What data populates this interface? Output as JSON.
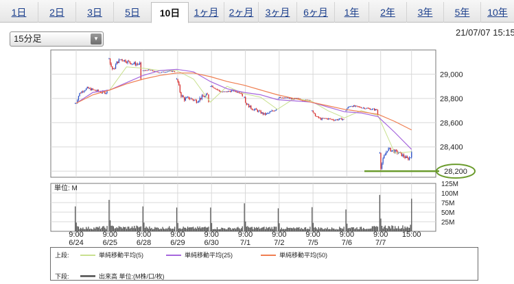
{
  "tabs": [
    {
      "label": "1日",
      "active": false
    },
    {
      "label": "2日",
      "active": false
    },
    {
      "label": "3日",
      "active": false
    },
    {
      "label": "5日",
      "active": false
    },
    {
      "label": "10日",
      "active": true
    },
    {
      "label": "1ヶ月",
      "active": false
    },
    {
      "label": "2ヶ月",
      "active": false
    },
    {
      "label": "3ヶ月",
      "active": false
    },
    {
      "label": "6ヶ月",
      "active": false
    },
    {
      "label": "1年",
      "active": false
    },
    {
      "label": "2年",
      "active": false
    },
    {
      "label": "3年",
      "active": false
    },
    {
      "label": "5年",
      "active": false
    },
    {
      "label": "10年",
      "active": false
    }
  ],
  "interval_select": {
    "value": "15分足"
  },
  "timestamp": "21/07/07 15:15",
  "legend": {
    "upper_label": "上段:",
    "lower_label": "下段:",
    "items": [
      {
        "label": "単純移動平均(5)",
        "color": "#c8e08e"
      },
      {
        "label": "単純移動平均(25)",
        "color": "#a565dd"
      },
      {
        "label": "単純移動平均(50)",
        "color": "#ef7d4f"
      }
    ],
    "volume_label": "出来高 単位:(M株/口/枚)",
    "volume_color": "#666666"
  },
  "chart_data": {
    "type": "candlestick",
    "price_axis": {
      "ylim": [
        28150,
        29200
      ],
      "ticks": [
        "29,000",
        "28,800",
        "28,600",
        "28,400"
      ]
    },
    "highlighted_level": {
      "value": 28200,
      "label": "28,200",
      "line_color": "#6a9b2c"
    },
    "x_ticks": [
      {
        "time": "9:00",
        "date": "6/24"
      },
      {
        "time": "9:00",
        "date": "6/25"
      },
      {
        "time": "9:00",
        "date": "6/28"
      },
      {
        "time": "9:00",
        "date": "6/29"
      },
      {
        "time": "9:00",
        "date": "6/30"
      },
      {
        "time": "9:00",
        "date": "7/1"
      },
      {
        "time": "9:00",
        "date": "7/2"
      },
      {
        "time": "9:00",
        "date": "7/5"
      },
      {
        "time": "9:00",
        "date": "7/6"
      },
      {
        "time": "9:00",
        "date": "7/7"
      },
      {
        "time": "15:00",
        "date": ""
      }
    ],
    "days": [
      {
        "date": "6/24",
        "open": 28760,
        "close": 28870,
        "high": 28920,
        "low": 28740,
        "path": [
          0.0,
          0.55,
          0.7,
          0.8,
          0.75,
          0.7,
          0.65,
          0.6,
          0.62
        ]
      },
      {
        "date": "6/25",
        "open": 29130,
        "close": 28960,
        "high": 29160,
        "low": 28920,
        "path": [
          0.8,
          0.45,
          0.75,
          0.85,
          0.8,
          0.75,
          0.7,
          0.68,
          0.7
        ]
      },
      {
        "date": "6/28",
        "open": 29030,
        "close": 29020,
        "high": 29060,
        "low": 28990,
        "path": [
          0.5,
          0.65,
          0.55,
          0.4,
          0.35,
          0.45,
          0.5,
          0.48
        ]
      },
      {
        "date": "6/29",
        "open": 28960,
        "close": 28770,
        "high": 29000,
        "low": 28740,
        "path": [
          0.9,
          0.35,
          0.2,
          0.25,
          0.2,
          0.15,
          0.25,
          0.3,
          0.35
        ]
      },
      {
        "date": "6/30",
        "open": 28900,
        "close": 28820,
        "high": 28930,
        "low": 28800,
        "path": [
          0.85,
          0.65,
          0.45,
          0.4,
          0.45,
          0.5,
          0.4,
          0.35
        ]
      },
      {
        "date": "7/1",
        "open": 28810,
        "close": 28710,
        "high": 28830,
        "low": 28650,
        "path": [
          0.7,
          0.5,
          0.35,
          0.3,
          0.2,
          0.1,
          0.15,
          0.25,
          0.35
        ]
      },
      {
        "date": "7/2",
        "open": 28800,
        "close": 28780,
        "high": 28840,
        "low": 28740,
        "path": [
          0.8,
          0.6,
          0.65,
          0.55,
          0.6,
          0.5,
          0.45,
          0.5
        ]
      },
      {
        "date": "7/5",
        "open": 28700,
        "close": 28630,
        "high": 28720,
        "low": 28590,
        "path": [
          0.75,
          0.45,
          0.3,
          0.35,
          0.3,
          0.25,
          0.3,
          0.32
        ]
      },
      {
        "date": "7/6",
        "open": 28700,
        "close": 28660,
        "high": 28770,
        "low": 28650,
        "path": [
          0.5,
          0.75,
          0.7,
          0.65,
          0.6,
          0.55,
          0.5,
          0.45
        ]
      },
      {
        "date": "7/7",
        "open": 28350,
        "close": 28360,
        "high": 28420,
        "low": 28180,
        "path": [
          0.1,
          0.55,
          0.85,
          0.8,
          0.75,
          0.7,
          0.6,
          0.5,
          0.6
        ]
      }
    ],
    "moving_averages": [
      {
        "name": "単純移動平均(5)",
        "color": "#c8e08e",
        "values": [
          28760,
          28850,
          28870,
          29060,
          29050,
          29030,
          29030,
          28960,
          28770,
          28900,
          28840,
          28810,
          28710,
          28800,
          28780,
          28700,
          28640,
          28700,
          28660,
          28350,
          28360
        ]
      },
      {
        "name": "単純移動平均(25)",
        "color": "#a565dd",
        "values": [
          28760,
          28850,
          28870,
          28930,
          28990,
          29030,
          29040,
          29020,
          28940,
          28880,
          28850,
          28830,
          28790,
          28780,
          28770,
          28730,
          28690,
          28680,
          28650,
          28520,
          28380
        ]
      },
      {
        "name": "単純移動平均(50)",
        "color": "#ef7d4f",
        "values": [
          28760,
          28830,
          28870,
          28920,
          28960,
          28990,
          29010,
          29010,
          28980,
          28940,
          28910,
          28870,
          28830,
          28800,
          28770,
          28740,
          28710,
          28690,
          28670,
          28610,
          28540
        ]
      }
    ],
    "volume_axis": {
      "ylim": [
        0,
        125
      ],
      "ticks": [
        "125M",
        "100M",
        "75M",
        "50M",
        "25M"
      ],
      "unit_label": "単位: M"
    },
    "volume": {
      "color": "#555555",
      "open_spikes": [
        65,
        82,
        65,
        62,
        62,
        73,
        60,
        63,
        57,
        95
      ],
      "close_spikes": [
        14,
        13,
        12,
        12,
        13,
        12,
        12,
        12,
        12,
        14
      ],
      "midday_levels": [
        8,
        9,
        8,
        8,
        7,
        8,
        7,
        7,
        8,
        10
      ],
      "final_spike": 85
    }
  }
}
